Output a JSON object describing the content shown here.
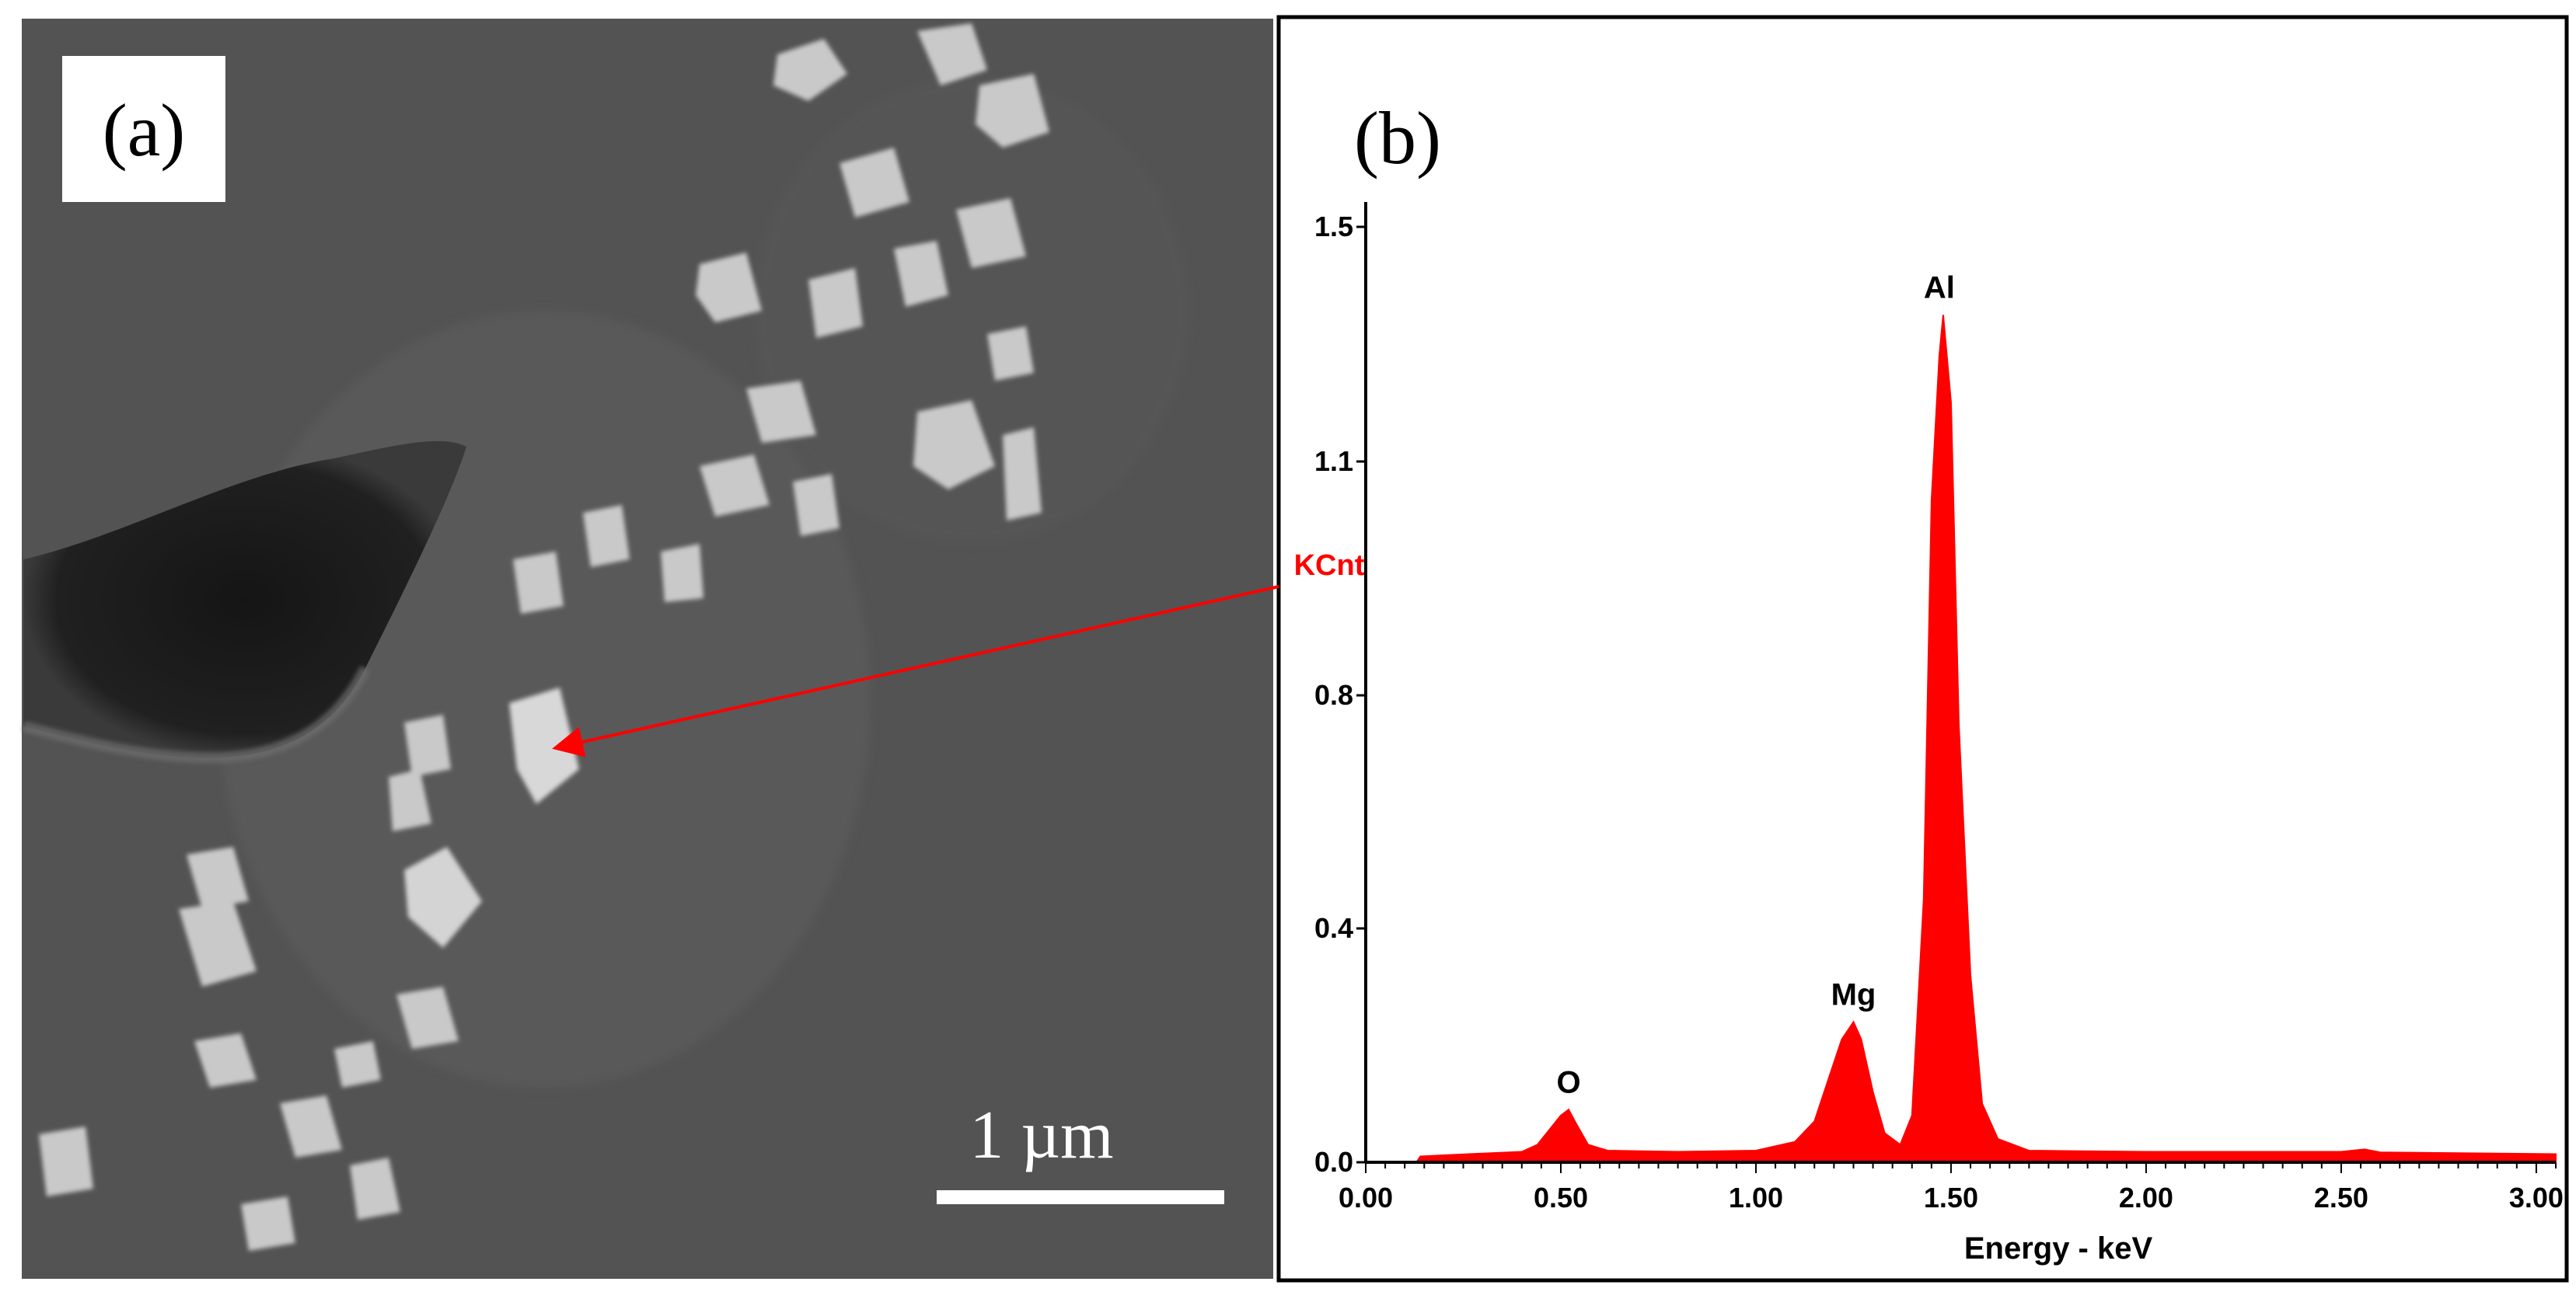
{
  "panel_a": {
    "label": "(a)",
    "scale_bar_text": "1 µm"
  },
  "panel_b": {
    "label": "(b)"
  },
  "chart_data": {
    "type": "line",
    "title": "",
    "xlabel": "Energy - keV",
    "ylabel": "KCnt",
    "xlim": [
      0.0,
      3.05
    ],
    "ylim": [
      0.0,
      1.6
    ],
    "xticks": [
      0.0,
      0.5,
      1.0,
      1.5,
      2.0,
      2.5,
      3.0
    ],
    "xtick_labels": [
      "0.00",
      "0.50",
      "1.00",
      "1.50",
      "2.00",
      "2.50",
      "3.00"
    ],
    "yticks": [
      0.0,
      0.4,
      0.8,
      1.1,
      1.5
    ],
    "ytick_labels": [
      "0.0",
      "0.4",
      "0.8",
      "1.1",
      "1.5"
    ],
    "grid": false,
    "series": [
      {
        "color": "#ff0000",
        "fill": true,
        "x": [
          0.0,
          0.13,
          0.14,
          0.2,
          0.3,
          0.4,
          0.44,
          0.47,
          0.5,
          0.52,
          0.54,
          0.57,
          0.62,
          0.8,
          1.0,
          1.1,
          1.15,
          1.19,
          1.22,
          1.25,
          1.27,
          1.3,
          1.33,
          1.37,
          1.4,
          1.43,
          1.45,
          1.47,
          1.48,
          1.5,
          1.52,
          1.55,
          1.58,
          1.62,
          1.7,
          2.0,
          2.5,
          2.56,
          2.6,
          3.05
        ],
        "y": [
          0.0,
          0.0,
          0.01,
          0.012,
          0.015,
          0.018,
          0.03,
          0.055,
          0.08,
          0.09,
          0.065,
          0.03,
          0.02,
          0.018,
          0.02,
          0.035,
          0.07,
          0.15,
          0.21,
          0.24,
          0.21,
          0.12,
          0.05,
          0.03,
          0.08,
          0.45,
          1.05,
          1.28,
          1.35,
          1.2,
          0.75,
          0.32,
          0.1,
          0.04,
          0.02,
          0.018,
          0.018,
          0.022,
          0.017,
          0.014
        ]
      }
    ],
    "annotations": [
      {
        "text": "O",
        "x": 0.52,
        "y": 0.09
      },
      {
        "text": "Mg",
        "x": 1.25,
        "y": 0.24
      },
      {
        "text": "Al",
        "x": 1.47,
        "y": 1.35
      }
    ],
    "colors": {
      "spectrum": "#ff0000",
      "ylabel": "#ff0000",
      "axes": "#000000"
    }
  }
}
